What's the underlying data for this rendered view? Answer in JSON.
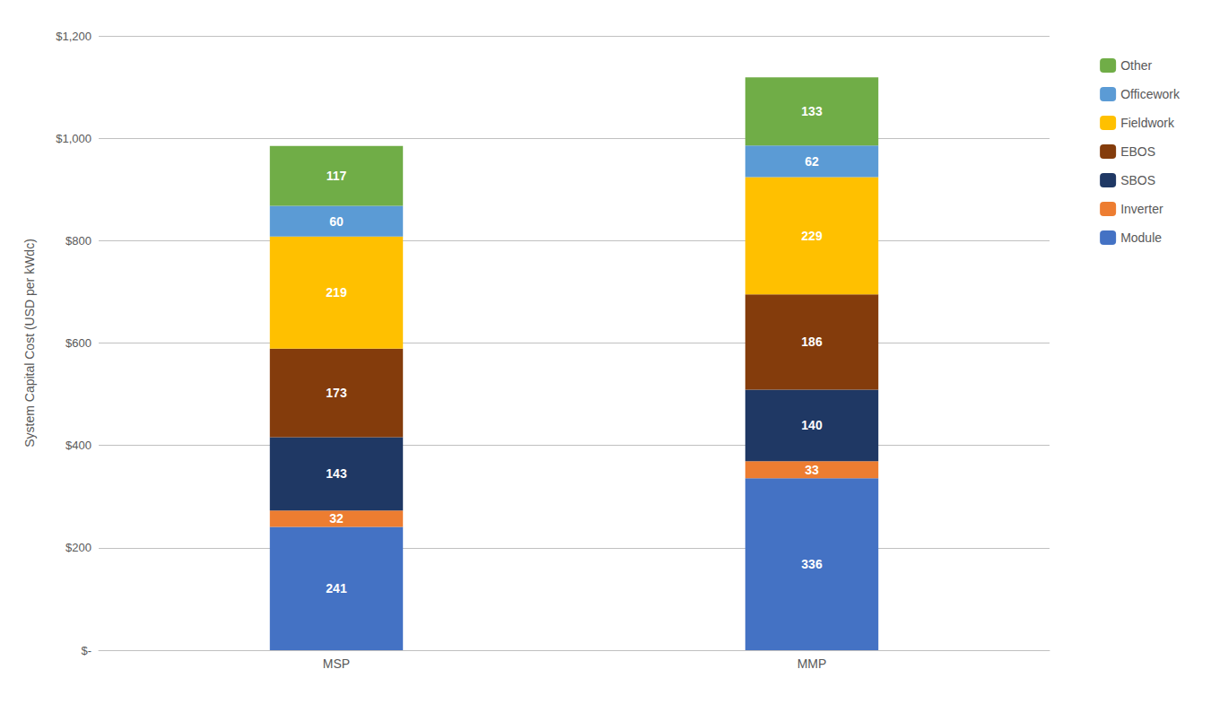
{
  "chart_data": {
    "type": "bar",
    "stacked": true,
    "categories": [
      "MSP",
      "MMP"
    ],
    "series": [
      {
        "name": "Module",
        "values": [
          241,
          336
        ],
        "color": "#4472C4"
      },
      {
        "name": "Inverter",
        "values": [
          32,
          33
        ],
        "color": "#ED7D31"
      },
      {
        "name": "SBOS",
        "values": [
          143,
          140
        ],
        "color": "#1F3864"
      },
      {
        "name": "EBOS",
        "values": [
          173,
          186
        ],
        "color": "#843C0C"
      },
      {
        "name": "Fieldwork",
        "values": [
          219,
          229
        ],
        "color": "#FFC000"
      },
      {
        "name": "Officework",
        "values": [
          60,
          62
        ],
        "color": "#5B9BD5"
      },
      {
        "name": "Other",
        "values": [
          117,
          133
        ],
        "color": "#70AD47"
      }
    ],
    "ylabel": "System Capital Cost (USD per kWdc)",
    "ylim": [
      0,
      1200
    ],
    "yticks": [
      {
        "value": 0,
        "label": "$-"
      },
      {
        "value": 200,
        "label": "$200"
      },
      {
        "value": 400,
        "label": "$400"
      },
      {
        "value": 600,
        "label": "$600"
      },
      {
        "value": 800,
        "label": "$800"
      },
      {
        "value": 1000,
        "label": "$1,000"
      },
      {
        "value": 1200,
        "label": "$1,200"
      }
    ],
    "grid": true,
    "legend": "right",
    "data_labels": true
  }
}
